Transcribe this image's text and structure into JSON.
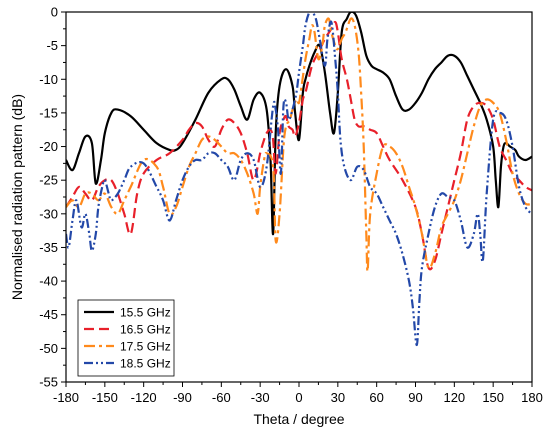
{
  "chart_data": {
    "type": "line",
    "title": "",
    "xlabel": "Theta / degree",
    "ylabel": "Normalised radiation pattern (dB)",
    "xlim": [
      -180,
      180
    ],
    "ylim": [
      -55,
      0
    ],
    "xticks": [
      -180,
      -150,
      -120,
      -90,
      -60,
      -30,
      0,
      30,
      60,
      90,
      120,
      150,
      180
    ],
    "yticks": [
      0,
      -5,
      -10,
      -15,
      -20,
      -25,
      -30,
      -35,
      -40,
      -45,
      -50,
      -55
    ],
    "grid": false,
    "legend_position": "bottom-left",
    "series": [
      {
        "name": "15.5 GHz",
        "color": "#000000",
        "dash": "solid",
        "x": [
          -180,
          -175,
          -170,
          -165,
          -160,
          -157,
          -153,
          -150,
          -145,
          -140,
          -130,
          -120,
          -110,
          -100,
          -95,
          -90,
          -80,
          -70,
          -60,
          -55,
          -50,
          -45,
          -40,
          -35,
          -30,
          -25,
          -22,
          -20,
          -18,
          -15,
          -10,
          -5,
          -3,
          0,
          3,
          5,
          8,
          12,
          16,
          20,
          24,
          27,
          30,
          33,
          37,
          40,
          44,
          48,
          52,
          56,
          60,
          65,
          70,
          75,
          80,
          85,
          90,
          95,
          100,
          105,
          110,
          115,
          120,
          125,
          130,
          135,
          140,
          145,
          150,
          152,
          154,
          156,
          158,
          160,
          163,
          167,
          170,
          175,
          180
        ],
        "y": [
          -22,
          -23.5,
          -21,
          -18.5,
          -19.5,
          -25.5,
          -22,
          -18,
          -15,
          -14.5,
          -15.5,
          -17.5,
          -19.5,
          -20.5,
          -20.5,
          -19.5,
          -16,
          -12,
          -10,
          -10,
          -11.5,
          -14,
          -16,
          -13,
          -12,
          -14.5,
          -22,
          -33,
          -18,
          -11,
          -8.5,
          -11,
          -15,
          -19,
          -12,
          -10,
          -8,
          -6,
          -5,
          -9,
          -15,
          -18,
          -12,
          -3,
          -1,
          0,
          -0.5,
          -3,
          -6.5,
          -8,
          -8.5,
          -9,
          -10,
          -12.5,
          -14.5,
          -14.5,
          -13.5,
          -12,
          -10,
          -8.5,
          -7.5,
          -6.5,
          -6.5,
          -7.5,
          -9.5,
          -11.5,
          -13.5,
          -16,
          -20,
          -25,
          -29,
          -23,
          -20,
          -19.5,
          -20,
          -20.5,
          -21.5,
          -22,
          -21.5
        ]
      },
      {
        "name": "16.5 GHz",
        "color": "#e8202a",
        "dash": "dashed",
        "x": [
          -180,
          -175,
          -170,
          -165,
          -160,
          -155,
          -150,
          -145,
          -140,
          -135,
          -130,
          -125,
          -120,
          -110,
          -100,
          -90,
          -85,
          -80,
          -75,
          -70,
          -65,
          -60,
          -55,
          -50,
          -45,
          -40,
          -35,
          -30,
          -27,
          -25,
          -22,
          -20,
          -18,
          -15,
          -12,
          -10,
          -8,
          -5,
          -3,
          0,
          3,
          5,
          10,
          15,
          20,
          25,
          28,
          30,
          33,
          37,
          40,
          43,
          46,
          50,
          55,
          60,
          65,
          70,
          80,
          90,
          95,
          100,
          105,
          110,
          115,
          120,
          125,
          130,
          135,
          140,
          145,
          150,
          155,
          160,
          165,
          170,
          175,
          180
        ],
        "y": [
          -29,
          -27.5,
          -26,
          -27,
          -28,
          -26,
          -25,
          -25,
          -27,
          -30,
          -33,
          -27,
          -24,
          -22,
          -21,
          -19,
          -17.5,
          -16.5,
          -17,
          -19,
          -20,
          -17.5,
          -16,
          -16.5,
          -18,
          -21,
          -25,
          -21,
          -19,
          -18,
          -17.5,
          -19,
          -24,
          -18,
          -16,
          -15.5,
          -17,
          -17.5,
          -18.5,
          -16.5,
          -13,
          -12,
          -8,
          -6,
          -4,
          -2.5,
          -1.5,
          -3,
          -7,
          -10,
          -13,
          -16,
          -17,
          -17,
          -17.5,
          -18,
          -20,
          -22,
          -25,
          -29,
          -33,
          -38,
          -37,
          -33,
          -29,
          -25,
          -21,
          -16,
          -14,
          -13.5,
          -14,
          -16,
          -20,
          -22,
          -24,
          -25,
          -26,
          -26.5
        ]
      },
      {
        "name": "17.5 GHz",
        "color": "#ff8a1c",
        "dash": "dashdot",
        "x": [
          -180,
          -175,
          -170,
          -165,
          -160,
          -155,
          -150,
          -145,
          -140,
          -135,
          -130,
          -120,
          -110,
          -105,
          -100,
          -95,
          -90,
          -85,
          -80,
          -75,
          -70,
          -65,
          -60,
          -55,
          -50,
          -45,
          -40,
          -35,
          -32,
          -30,
          -27,
          -25,
          -20,
          -18,
          -15,
          -12,
          -10,
          -7,
          -5,
          -2,
          0,
          2,
          5,
          8,
          10,
          12,
          15,
          18,
          20,
          23,
          25,
          28,
          30,
          33,
          36,
          40,
          43,
          46,
          48,
          50,
          52,
          53,
          55,
          60,
          65,
          70,
          75,
          80,
          85,
          90,
          95,
          100,
          105,
          110,
          115,
          120,
          125,
          130,
          135,
          140,
          145,
          150,
          155,
          160,
          165,
          170,
          175,
          180
        ],
        "y": [
          -29,
          -28,
          -29,
          -27,
          -27,
          -28,
          -27,
          -29,
          -30,
          -28,
          -26,
          -22,
          -23,
          -26,
          -30,
          -29,
          -26,
          -23,
          -21,
          -19,
          -18.5,
          -19,
          -20,
          -21,
          -21,
          -22,
          -24,
          -27,
          -30,
          -26,
          -22,
          -21,
          -23,
          -34,
          -30,
          -20,
          -17,
          -16,
          -14.5,
          -13,
          -13.5,
          -11,
          -7,
          -4,
          -2,
          -3,
          -7,
          -5,
          -2,
          -1,
          -3,
          -5,
          -5.5,
          -4,
          -3,
          -1,
          -2,
          -6,
          -12,
          -20,
          -33,
          -38.5,
          -30,
          -24,
          -20,
          -20,
          -21,
          -23,
          -26,
          -29,
          -33,
          -38,
          -36,
          -32,
          -30,
          -28,
          -25,
          -21,
          -17,
          -14,
          -13,
          -13.5,
          -15,
          -19,
          -24,
          -27,
          -28.5,
          -28.5
        ]
      },
      {
        "name": "18.5 GHz",
        "color": "#2348a8",
        "dash": "dashdotdot",
        "x": [
          -180,
          -178,
          -175,
          -172,
          -168,
          -165,
          -162,
          -160,
          -157,
          -155,
          -152,
          -150,
          -147,
          -145,
          -140,
          -135,
          -130,
          -120,
          -110,
          -105,
          -100,
          -95,
          -90,
          -85,
          -80,
          -75,
          -70,
          -65,
          -60,
          -55,
          -50,
          -45,
          -40,
          -35,
          -30,
          -25,
          -20,
          -18,
          -16,
          -14,
          -12,
          -10,
          -8,
          -5,
          -2,
          0,
          3,
          5,
          8,
          10,
          13,
          16,
          20,
          22,
          25,
          28,
          30,
          32,
          35,
          40,
          45,
          50,
          55,
          60,
          65,
          70,
          75,
          80,
          85,
          88,
          91,
          93,
          95,
          100,
          105,
          110,
          115,
          120,
          125,
          130,
          135,
          138,
          140,
          142,
          145,
          150,
          155,
          160,
          165,
          170,
          175,
          180
        ],
        "y": [
          -33,
          -35,
          -31,
          -28,
          -32,
          -30,
          -33,
          -35.5,
          -33,
          -29,
          -26,
          -25,
          -27,
          -28,
          -27,
          -25,
          -23,
          -22.5,
          -26,
          -28,
          -31,
          -28,
          -25,
          -23,
          -22,
          -22,
          -21,
          -21,
          -22,
          -23,
          -25,
          -22,
          -21,
          -22,
          -26,
          -23,
          -14,
          -14.5,
          -18,
          -24,
          -14,
          -13.5,
          -16,
          -14.5,
          -12,
          -9,
          -5,
          -2,
          0,
          0,
          -1,
          -4,
          -8,
          -4,
          -1.5,
          -7,
          -12,
          -19,
          -23,
          -25,
          -23,
          -23.5,
          -26,
          -27,
          -29,
          -31,
          -33,
          -36,
          -40,
          -44,
          -49.5,
          -43,
          -38,
          -33,
          -29,
          -27,
          -27.5,
          -28,
          -31,
          -35,
          -33,
          -30,
          -33,
          -37,
          -27,
          -16,
          -15,
          -16,
          -20,
          -26,
          -29,
          -30
        ]
      }
    ]
  }
}
